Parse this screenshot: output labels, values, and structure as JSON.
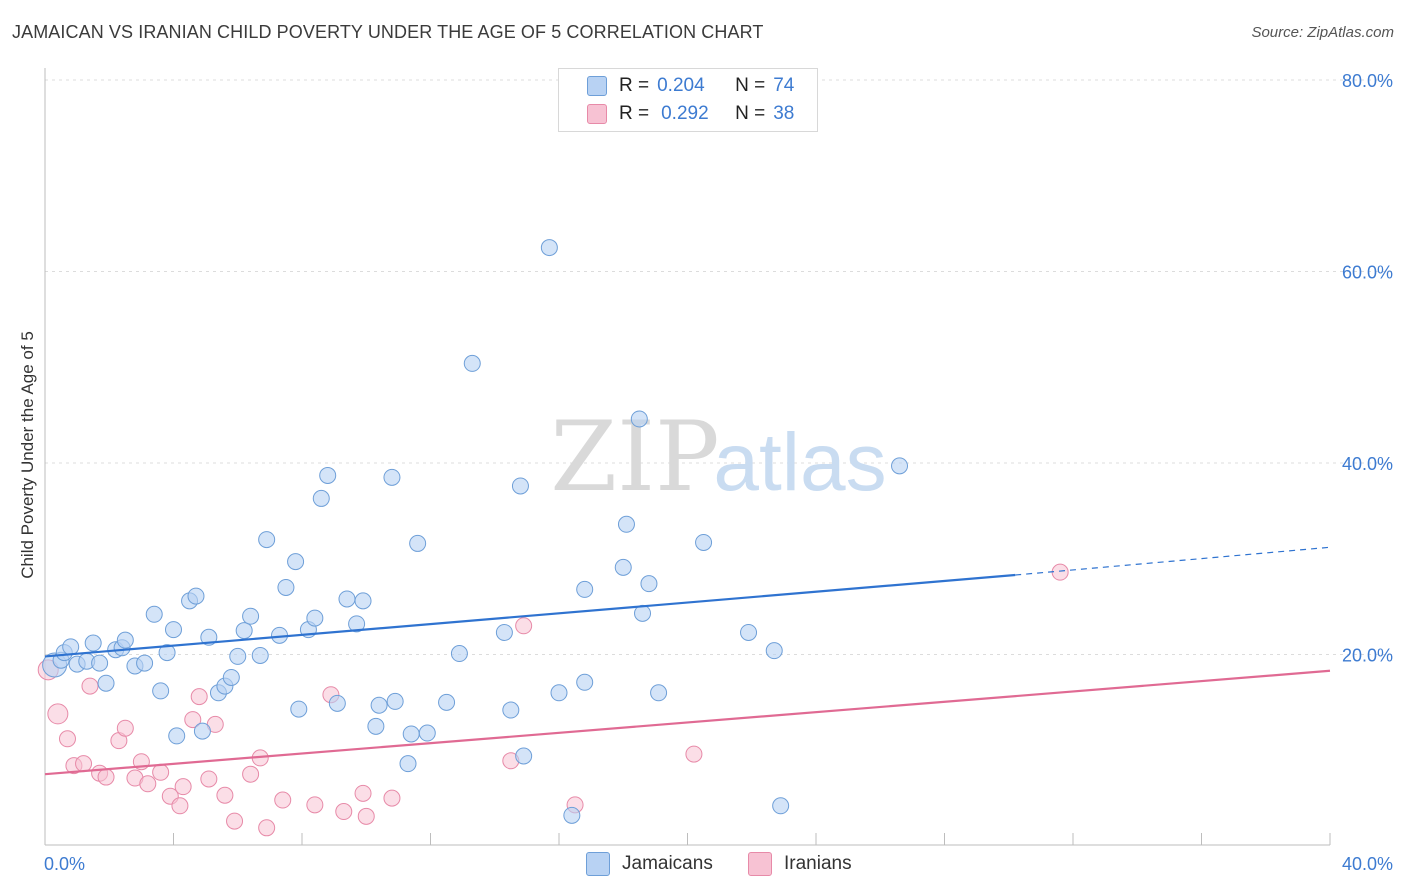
{
  "title": "JAMAICAN VS IRANIAN CHILD POVERTY UNDER THE AGE OF 5 CORRELATION CHART",
  "source": "Source: ZipAtlas.com",
  "watermark": {
    "zip": "ZIP",
    "atlas": "atlas"
  },
  "colors": {
    "jamaican_fill": "#b8d2f3",
    "jamaican_stroke": "#6e9fd8",
    "jamaican_line": "#2f73d0",
    "iranian_fill": "#f7c2d3",
    "iranian_stroke": "#e78aa8",
    "iranian_line": "#e06a93",
    "tick_label": "#3d7bd1"
  },
  "legend": {
    "rows": [
      {
        "r_label": "R =",
        "r_value": "0.204",
        "n_label": "N =",
        "n_value": "74",
        "series": "Jamaicans"
      },
      {
        "r_label": "R =",
        "r_value": "0.292",
        "n_label": "N =",
        "n_value": "38",
        "series": "Iranians"
      }
    ]
  },
  "chart_data": {
    "type": "scatter",
    "title": "JAMAICAN VS IRANIAN CHILD POVERTY UNDER THE AGE OF 5 CORRELATION CHART",
    "xlabel": "",
    "ylabel": "Child Poverty Under the Age of 5",
    "xlim": [
      0,
      40
    ],
    "ylim": [
      0,
      80
    ],
    "x_tick_labels": [
      "0.0%",
      "40.0%"
    ],
    "y_ticks": [
      20,
      40,
      60,
      80
    ],
    "y_tick_labels": [
      "20.0%",
      "40.0%",
      "60.0%",
      "80.0%"
    ],
    "grid": true,
    "legend_position": "top-center",
    "series": [
      {
        "name": "Jamaicans",
        "trend": {
          "x0": 0,
          "y0": 19.8,
          "x1": 30.2,
          "y1": 28.3,
          "dashed_to_x": 40,
          "dashed_to_y": 31.2
        },
        "points": [
          [
            0.3,
            18.9
          ],
          [
            0.5,
            19.4
          ],
          [
            0.6,
            20.2
          ],
          [
            0.8,
            20.8
          ],
          [
            1.0,
            19.0
          ],
          [
            1.3,
            19.3
          ],
          [
            1.5,
            21.2
          ],
          [
            1.7,
            19.1
          ],
          [
            1.9,
            17.0
          ],
          [
            2.2,
            20.5
          ],
          [
            2.4,
            20.7
          ],
          [
            2.5,
            21.5
          ],
          [
            2.8,
            18.8
          ],
          [
            3.1,
            19.1
          ],
          [
            3.4,
            24.2
          ],
          [
            3.6,
            16.2
          ],
          [
            3.8,
            20.2
          ],
          [
            4.0,
            22.6
          ],
          [
            4.1,
            11.5
          ],
          [
            4.5,
            25.6
          ],
          [
            4.7,
            26.1
          ],
          [
            4.9,
            12.0
          ],
          [
            5.1,
            21.8
          ],
          [
            5.4,
            16.0
          ],
          [
            5.6,
            16.7
          ],
          [
            5.8,
            17.6
          ],
          [
            6.0,
            19.8
          ],
          [
            6.2,
            22.5
          ],
          [
            6.4,
            24.0
          ],
          [
            6.7,
            19.9
          ],
          [
            6.9,
            32.0
          ],
          [
            7.3,
            22.0
          ],
          [
            7.5,
            27.0
          ],
          [
            7.8,
            29.7
          ],
          [
            7.9,
            14.3
          ],
          [
            8.2,
            22.6
          ],
          [
            8.4,
            23.8
          ],
          [
            8.6,
            36.3
          ],
          [
            8.8,
            38.7
          ],
          [
            9.1,
            14.9
          ],
          [
            9.4,
            25.8
          ],
          [
            9.7,
            23.2
          ],
          [
            9.9,
            25.6
          ],
          [
            10.3,
            12.5
          ],
          [
            10.4,
            14.7
          ],
          [
            10.8,
            38.5
          ],
          [
            10.9,
            15.1
          ],
          [
            11.3,
            8.6
          ],
          [
            11.4,
            11.7
          ],
          [
            11.6,
            31.6
          ],
          [
            11.9,
            11.8
          ],
          [
            12.5,
            15.0
          ],
          [
            12.9,
            20.1
          ],
          [
            13.3,
            50.4
          ],
          [
            14.3,
            22.3
          ],
          [
            14.5,
            14.2
          ],
          [
            14.8,
            37.6
          ],
          [
            14.9,
            9.4
          ],
          [
            16.0,
            16.0
          ],
          [
            16.4,
            3.2
          ],
          [
            16.8,
            26.8
          ],
          [
            16.8,
            17.1
          ],
          [
            18.0,
            29.1
          ],
          [
            18.1,
            33.6
          ],
          [
            18.5,
            44.6
          ],
          [
            18.6,
            24.3
          ],
          [
            18.8,
            27.4
          ],
          [
            19.1,
            16.0
          ],
          [
            20.5,
            31.7
          ],
          [
            21.9,
            22.3
          ],
          [
            22.7,
            20.4
          ],
          [
            22.9,
            4.2
          ],
          [
            26.6,
            39.7
          ],
          [
            15.7,
            62.5
          ]
        ]
      },
      {
        "name": "Iranians",
        "trend": {
          "x0": 0,
          "y0": 7.5,
          "x1": 40,
          "y1": 18.3
        },
        "points": [
          [
            0.1,
            18.4
          ],
          [
            0.4,
            13.8
          ],
          [
            0.7,
            11.2
          ],
          [
            0.9,
            8.4
          ],
          [
            1.2,
            8.6
          ],
          [
            1.4,
            16.7
          ],
          [
            1.7,
            7.6
          ],
          [
            1.9,
            7.2
          ],
          [
            2.3,
            11.0
          ],
          [
            2.5,
            12.3
          ],
          [
            2.8,
            7.1
          ],
          [
            3.0,
            8.8
          ],
          [
            3.2,
            6.5
          ],
          [
            3.6,
            7.7
          ],
          [
            3.9,
            5.2
          ],
          [
            4.2,
            4.2
          ],
          [
            4.3,
            6.2
          ],
          [
            4.6,
            13.2
          ],
          [
            4.8,
            15.6
          ],
          [
            5.1,
            7.0
          ],
          [
            5.3,
            12.7
          ],
          [
            5.6,
            5.3
          ],
          [
            5.9,
            2.6
          ],
          [
            6.4,
            7.5
          ],
          [
            6.7,
            9.2
          ],
          [
            6.9,
            1.9
          ],
          [
            7.4,
            4.8
          ],
          [
            8.4,
            4.3
          ],
          [
            8.9,
            15.8
          ],
          [
            9.3,
            3.6
          ],
          [
            9.9,
            5.5
          ],
          [
            10.0,
            3.1
          ],
          [
            10.8,
            5.0
          ],
          [
            14.5,
            8.9
          ],
          [
            14.9,
            23.0
          ],
          [
            16.5,
            4.3
          ],
          [
            20.2,
            9.6
          ],
          [
            31.6,
            28.6
          ]
        ]
      }
    ]
  }
}
